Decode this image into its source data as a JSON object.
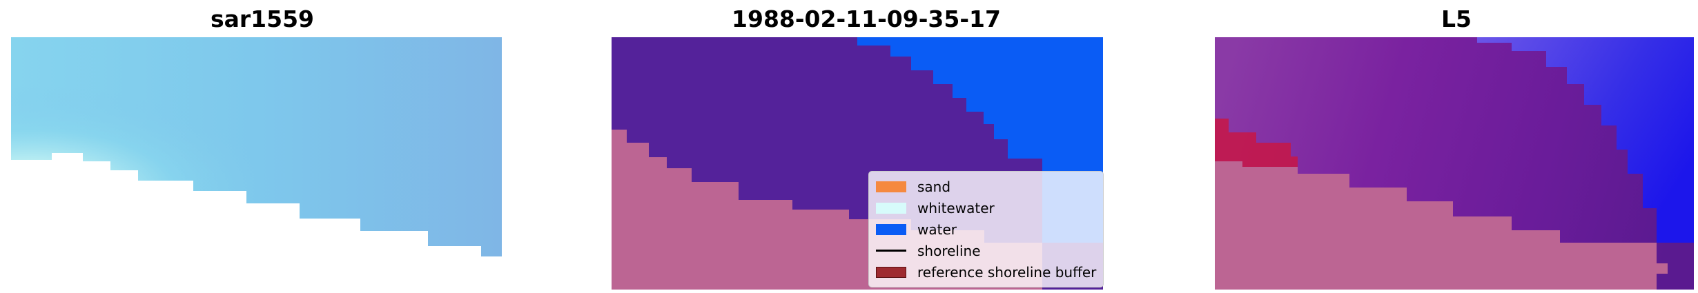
{
  "panels": [
    {
      "title": "sar1559"
    },
    {
      "title": "1988-02-11-09-35-17"
    },
    {
      "title": "L5"
    }
  ],
  "legend": {
    "items": [
      {
        "label": "sand",
        "color": "#f5893f",
        "kind": "patch"
      },
      {
        "label": "whitewater",
        "color": "#d7fbfb",
        "kind": "patch"
      },
      {
        "label": "water",
        "color": "#0a5cf5",
        "kind": "patch"
      },
      {
        "label": "shoreline",
        "color": "#000000",
        "kind": "line"
      },
      {
        "label": "reference shoreline buffer",
        "color": "#9e2b30",
        "kind": "patch"
      }
    ]
  },
  "colors": {
    "rgb_background": "#80c8ec",
    "rgb_whitewater_spot": "#fff0ee",
    "land_pink": "#bc6593",
    "classified_purple": "#54229a",
    "classified_water": "#0a5cf5",
    "mndwi_purple": "#7a1f9f",
    "mndwi_blue": "#2a2af0",
    "mndwi_red": "#d0103c"
  }
}
